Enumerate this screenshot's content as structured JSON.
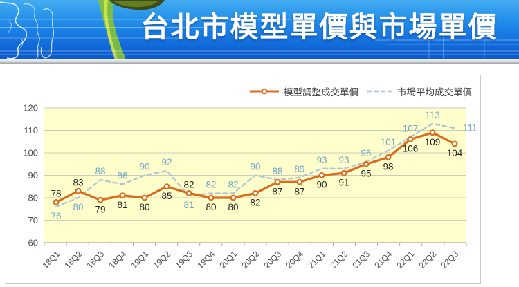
{
  "header": {
    "title": "台北市模型單價與市場單價"
  },
  "legend": {
    "items": [
      {
        "label": "模型調整成交單價",
        "swatch": "solid-line-circle-marker",
        "color": "#DC6B1E"
      },
      {
        "label": "市場平均成交單價",
        "swatch": "dashed-line",
        "color": "#AFC2DA"
      }
    ]
  },
  "chart_data": {
    "type": "line",
    "title": "台北市模型單價與市場單價",
    "categories": [
      "18Q1",
      "18Q2",
      "18Q3",
      "18Q4",
      "19Q1",
      "19Q2",
      "19Q3",
      "19Q4",
      "20Q1",
      "20Q2",
      "20Q3",
      "20Q4",
      "21Q1",
      "21Q2",
      "21Q3",
      "21Q4",
      "22Q1",
      "22Q2",
      "22Q3"
    ],
    "series": [
      {
        "name": "模型調整成交單價",
        "style": "solid",
        "marker": "circle",
        "color": "#DC6B1E",
        "label_color": "#262626",
        "values": [
          78,
          83,
          79,
          81,
          80,
          85,
          82,
          80,
          80,
          82,
          87,
          87,
          90,
          91,
          95,
          98,
          106,
          109,
          104
        ],
        "label_pos": [
          "above",
          "above",
          "below",
          "below",
          "below",
          "below",
          "above",
          "below",
          "below",
          "below",
          "below",
          "below",
          "below",
          "below",
          "below",
          "below",
          "below",
          "below",
          "below"
        ]
      },
      {
        "name": "市場平均成交單價",
        "style": "dashed",
        "marker": "none",
        "color": "#AFC2DA",
        "label_color": "#6FA6CA",
        "values": [
          76,
          80,
          88,
          86,
          90,
          92,
          81,
          82,
          82,
          90,
          88,
          89,
          93,
          93,
          96,
          101,
          107,
          113,
          111
        ],
        "label_pos": [
          "below",
          "below",
          "above",
          "above",
          "above",
          "above",
          "below",
          "above",
          "above",
          "above",
          "above",
          "above",
          "above",
          "above",
          "above",
          "above",
          "above",
          "above",
          "right"
        ]
      }
    ],
    "xlabel": "",
    "ylabel": "",
    "ylim": [
      60,
      120
    ],
    "yticks": [
      60,
      70,
      80,
      90,
      100,
      110,
      120
    ],
    "grid": true,
    "plot_bg": "#FFFFCB",
    "grid_color": "#CCCCBE",
    "axis_color": "#A9A99F",
    "tick_label_color": "#4D4D4D",
    "legend_position": "top-right"
  }
}
